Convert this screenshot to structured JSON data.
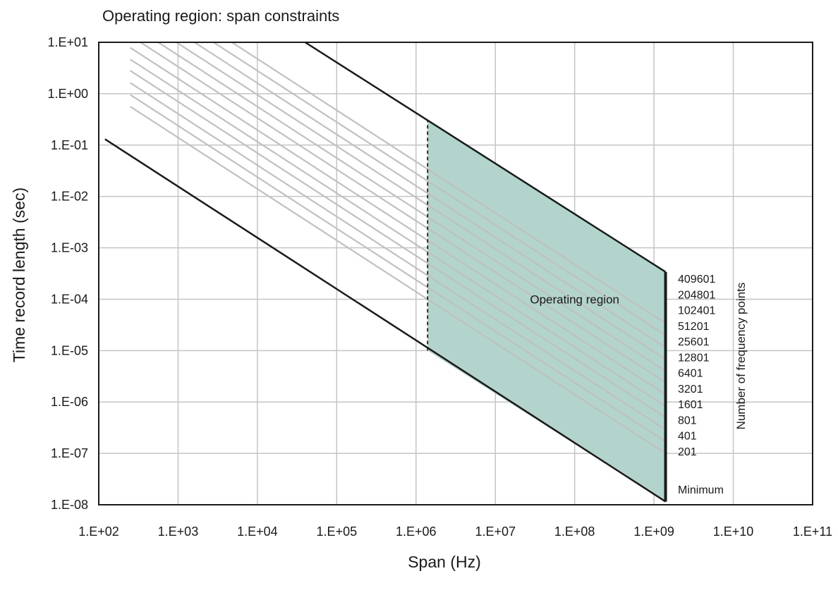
{
  "chart_data": {
    "type": "line",
    "title": "Operating region: span constraints",
    "xlabel": "Span (Hz)",
    "ylabel": "Time record length (sec)",
    "x_scale": "log",
    "y_scale": "log",
    "xlim": [
      100,
      100000000000
    ],
    "ylim": [
      1e-08,
      10
    ],
    "grid": true,
    "x_tick_values": [
      100,
      1000,
      10000,
      100000,
      1000000,
      10000000,
      100000000,
      1000000000,
      10000000000,
      100000000000
    ],
    "x_tick_labels": [
      "1.E+02",
      "1.E+03",
      "1.E+04",
      "1.E+05",
      "1.E+06",
      "1.E+07",
      "1.E+08",
      "1.E+09",
      "1.E+10",
      "1.E+11"
    ],
    "y_tick_values": [
      10,
      1,
      0.1,
      0.01,
      0.001,
      0.0001,
      1e-05,
      1e-06,
      1e-07,
      1e-08
    ],
    "y_tick_labels": [
      "1.E+01",
      "1.E+00",
      "1.E-01",
      "1.E-02",
      "1.E-03",
      "1.E-04",
      "1.E-05",
      "1.E-06",
      "1.E-07",
      "1.E-08"
    ],
    "boundaries": {
      "minimum_line": {
        "x": [
          120,
          1400000000
        ],
        "y": [
          0.13,
          1.15e-08
        ]
      },
      "maximum_line": {
        "x": [
          40000,
          1400000000
        ],
        "y": [
          10,
          0.00034
        ]
      },
      "min_span_divider": {
        "x": [
          1400000,
          1400000
        ],
        "y": [
          1e-05,
          0.3
        ]
      },
      "max_span_edge": {
        "x": [
          1400000000,
          1400000000
        ],
        "y": [
          1.15e-08,
          0.00034
        ]
      }
    },
    "operating_region": {
      "label": "Operating region",
      "label_at": {
        "x": 100000000,
        "y": 0.0001
      },
      "polygon": {
        "x": [
          1400000,
          1400000,
          1400000000,
          1400000000
        ],
        "y": [
          1e-05,
          0.3,
          0.00034,
          1.15e-08
        ]
      }
    },
    "frequency_point_lines": {
      "x_start": 250,
      "x_end": 1400000000,
      "series": [
        {
          "points": 201,
          "y_end": 1e-07
        },
        {
          "points": 401,
          "y_end": 1.7e-07
        },
        {
          "points": 801,
          "y_end": 2.9e-07
        },
        {
          "points": 1601,
          "y_end": 5e-07
        },
        {
          "points": 3201,
          "y_end": 8.3e-07
        },
        {
          "points": 6401,
          "y_end": 1.4e-06
        },
        {
          "points": 12801,
          "y_end": 2.4e-06
        },
        {
          "points": 25601,
          "y_end": 4e-06
        },
        {
          "points": 51201,
          "y_end": 6.8e-06
        },
        {
          "points": 102401,
          "y_end": 1.15e-05
        },
        {
          "points": 204801,
          "y_end": 2e-05
        },
        {
          "points": 409601,
          "y_end": 3.4e-05
        }
      ]
    },
    "right_labels": [
      "409601",
      "204801",
      "102401",
      "51201",
      "25601",
      "12801",
      "6401",
      "3201",
      "1601",
      "801",
      "401",
      "201"
    ],
    "minimum_label": "Minimum",
    "right_axis_label": "Number of frequency points",
    "colors": {
      "region_fill": "#b2d4cc",
      "grid": "#c4c4c4",
      "boundary": "#1a1a1a",
      "point_lines": "#c0c0c0"
    }
  }
}
